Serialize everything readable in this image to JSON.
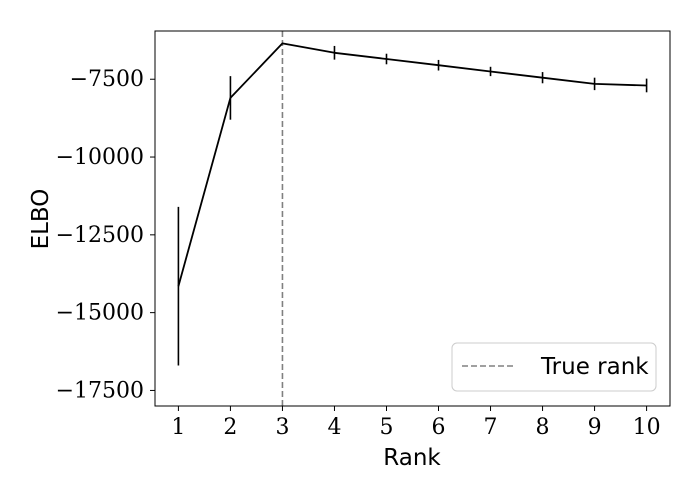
{
  "chart_data": {
    "type": "line",
    "xlabel": "Rank",
    "ylabel": "ELBO",
    "x": [
      1,
      2,
      3,
      4,
      5,
      6,
      7,
      8,
      9,
      10
    ],
    "series": [
      {
        "values": [
          -14150,
          -8100,
          -6350,
          -6650,
          -6850,
          -7050,
          -7250,
          -7450,
          -7650,
          -7700
        ],
        "error": [
          2550,
          700,
          0,
          220,
          170,
          170,
          150,
          180,
          200,
          220
        ],
        "color": "#000000",
        "line_style": "solid"
      }
    ],
    "reference_line": {
      "orientation": "vertical",
      "x": 3,
      "label": "True rank",
      "color": "#808080",
      "line_style": "dashed"
    },
    "xticks": [
      "1",
      "2",
      "3",
      "4",
      "5",
      "6",
      "7",
      "8",
      "9",
      "10"
    ],
    "yticks": [
      -7500,
      -10000,
      -12500,
      -15000,
      -17500
    ],
    "ytick_labels": [
      "−7500",
      "−10000",
      "−12500",
      "−15000",
      "−17500"
    ],
    "xlim": [
      0.55,
      10.45
    ],
    "ylim": [
      -18000,
      -5950
    ],
    "grid": false,
    "legend": {
      "position": "lower-right",
      "entries": [
        "True rank"
      ]
    }
  }
}
